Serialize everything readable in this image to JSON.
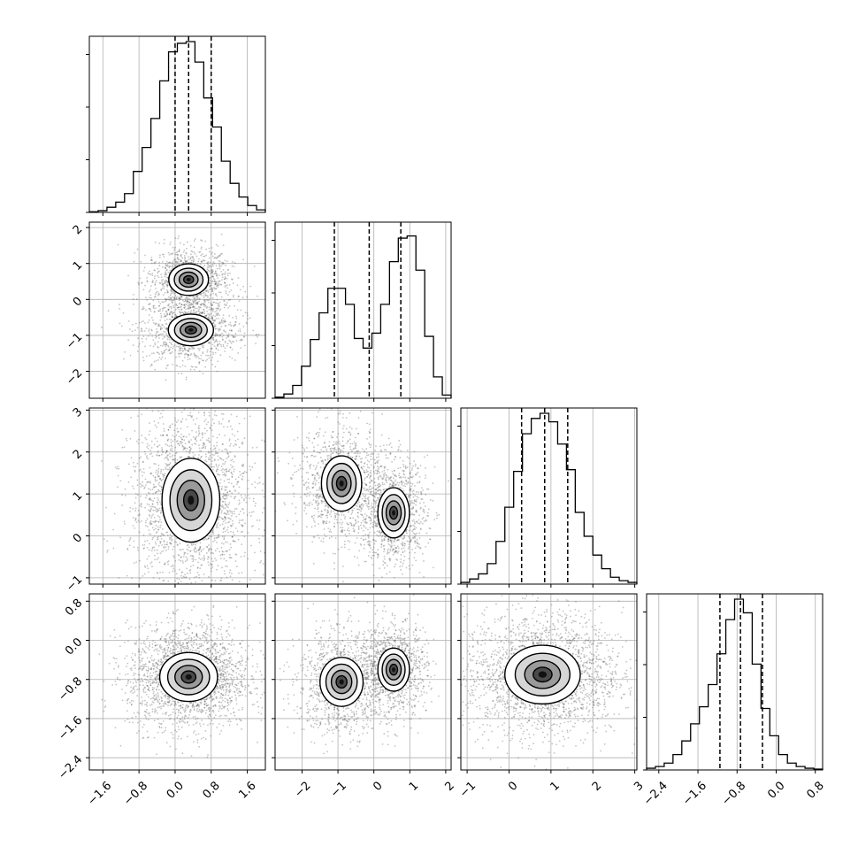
{
  "chart_data": {
    "type": "corner",
    "grid": true,
    "panel_order": [
      [
        0,
        null,
        null,
        null
      ],
      [
        1,
        0,
        null,
        null
      ],
      [
        2,
        0,
        1,
        null
      ],
      [
        3,
        0,
        1,
        2
      ]
    ],
    "parameters": [
      {
        "range": [
          -1.9,
          2.0
        ],
        "ticks": [
          "−1.6",
          "−0.8",
          "0.0",
          "0.8",
          "1.6"
        ],
        "tick_values": [
          -1.6,
          -0.8,
          0.0,
          0.8,
          1.6
        ],
        "quantiles": [
          0.0,
          0.3,
          0.8
        ],
        "hist_counts": [
          0.004,
          0.01,
          0.03,
          0.06,
          0.11,
          0.24,
          0.38,
          0.55,
          0.77,
          0.94,
          0.99,
          1.0,
          0.88,
          0.67,
          0.5,
          0.3,
          0.17,
          0.09,
          0.04,
          0.015
        ]
      },
      {
        "range": [
          -2.75,
          2.15
        ],
        "ticks": [
          "−2",
          "−1",
          "0",
          "1",
          "2"
        ],
        "tick_values": [
          -2,
          -1,
          0,
          1,
          2
        ],
        "quantiles": [
          -1.1,
          -0.13,
          0.75
        ],
        "hist_counts": [
          0.01,
          0.04,
          0.12,
          0.3,
          0.55,
          0.8,
          1.03,
          1.03,
          0.88,
          0.56,
          0.47,
          0.61,
          0.88,
          1.28,
          1.5,
          1.52,
          1.2,
          0.58,
          0.2,
          0.03
        ],
        "hist_max": 1.6
      },
      {
        "range": [
          -1.15,
          3.05
        ],
        "ticks": [
          "−1",
          "0",
          "1",
          "2",
          "3"
        ],
        "tick_values": [
          -1,
          0,
          1,
          2,
          3
        ],
        "quantiles": [
          0.3,
          0.85,
          1.4
        ],
        "hist_counts": [
          0.01,
          0.03,
          0.06,
          0.12,
          0.25,
          0.45,
          0.66,
          0.88,
          0.97,
          1.0,
          0.95,
          0.82,
          0.67,
          0.42,
          0.28,
          0.17,
          0.09,
          0.04,
          0.02,
          0.01
        ]
      },
      {
        "range": [
          -2.65,
          0.95
        ],
        "ticks": [
          "−2.4",
          "−1.6",
          "−0.8",
          "0.0",
          "0.8"
        ],
        "tick_values": [
          -2.4,
          -1.6,
          -0.8,
          0.0,
          0.8
        ],
        "quantiles": [
          -1.15,
          -0.73,
          -0.28
        ],
        "hist_counts": [
          0.01,
          0.02,
          0.04,
          0.09,
          0.17,
          0.27,
          0.37,
          0.5,
          0.68,
          0.88,
          1.0,
          0.92,
          0.62,
          0.36,
          0.2,
          0.09,
          0.04,
          0.02,
          0.01,
          0.005
        ]
      }
    ],
    "pairs": [
      {
        "x": 0,
        "y": 1,
        "modes": [
          {
            "cx": 0.3,
            "cy": 0.55,
            "sx": 0.22,
            "sy": 0.22,
            "w": 1.0
          },
          {
            "cx": 0.35,
            "cy": -0.85,
            "sx": 0.25,
            "sy": 0.22,
            "w": 1.0
          }
        ]
      },
      {
        "x": 0,
        "y": 2,
        "modes": [
          {
            "cx": 0.35,
            "cy": 0.85,
            "sx": 0.32,
            "sy": 0.5,
            "w": 1.0
          }
        ]
      },
      {
        "x": 1,
        "y": 2,
        "modes": [
          {
            "cx": -0.9,
            "cy": 1.25,
            "sx": 0.28,
            "sy": 0.33,
            "w": 1.0
          },
          {
            "cx": 0.55,
            "cy": 0.55,
            "sx": 0.22,
            "sy": 0.3,
            "w": 1.0
          }
        ]
      },
      {
        "x": 0,
        "y": 3,
        "modes": [
          {
            "cx": 0.3,
            "cy": -0.75,
            "sx": 0.32,
            "sy": 0.25,
            "w": 1.0
          }
        ]
      },
      {
        "x": 1,
        "y": 3,
        "modes": [
          {
            "cx": -0.9,
            "cy": -0.85,
            "sx": 0.3,
            "sy": 0.25,
            "w": 1.0
          },
          {
            "cx": 0.55,
            "cy": -0.6,
            "sx": 0.22,
            "sy": 0.22,
            "w": 1.0
          }
        ]
      },
      {
        "x": 2,
        "y": 3,
        "modes": [
          {
            "cx": 0.8,
            "cy": -0.7,
            "sx": 0.45,
            "sy": 0.3,
            "w": 1.0
          }
        ]
      }
    ]
  }
}
